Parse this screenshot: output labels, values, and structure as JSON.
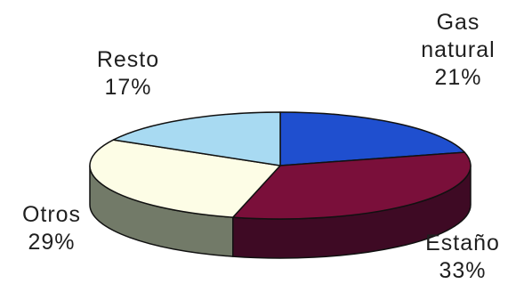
{
  "chart_data": {
    "type": "pie",
    "title": "",
    "slices": [
      {
        "label_lines": [
          "Gas",
          "natural"
        ],
        "value": 21,
        "value_text": "21%",
        "color": "#1f4fcf",
        "side": "#153a99"
      },
      {
        "label_lines": [
          "Estaño"
        ],
        "value": 33,
        "value_text": "33%",
        "color": "#7a0f3a",
        "side": "#3e0a24"
      },
      {
        "label_lines": [
          "Otros"
        ],
        "value": 29,
        "value_text": "29%",
        "color": "#fdfde6",
        "side": "#727a68"
      },
      {
        "label_lines": [
          "Resto"
        ],
        "value": 17,
        "value_text": "17%",
        "color": "#a8daf2",
        "side": "#6f9fb8"
      }
    ]
  }
}
